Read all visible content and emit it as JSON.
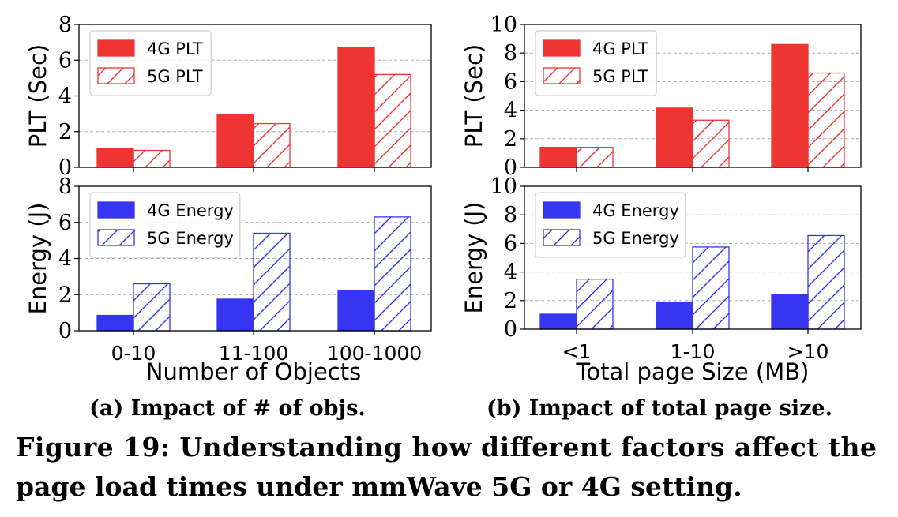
{
  "colors": {
    "g4_plt": "#ef3434",
    "g5_plt": "#ef3434",
    "g4_energy": "#3535f2",
    "g5_energy": "#3535f2"
  },
  "figure_caption": {
    "line1": "Figure 19: Understanding how different factors affect the",
    "line2": "page load times under mmWave 5G or 4G setting."
  },
  "chart_data": [
    {
      "type": "bar",
      "panel": "a-top",
      "categories": [
        "0-10",
        "11-100",
        "100-1000"
      ],
      "ylabel": "PLT (Sec)",
      "ylim": [
        0,
        8
      ],
      "yticks": [
        0,
        2,
        4,
        6,
        8
      ],
      "grid": "horizontal dashed",
      "legend": "top-left",
      "series": [
        {
          "name": "4G PLT",
          "values": [
            1.05,
            2.95,
            6.7
          ],
          "style": "solid"
        },
        {
          "name": "5G PLT",
          "values": [
            0.95,
            2.45,
            5.2
          ],
          "style": "hatched"
        }
      ]
    },
    {
      "type": "bar",
      "panel": "a-bottom",
      "categories": [
        "0-10",
        "11-100",
        "100-1000"
      ],
      "xlabel": "Number of Objects",
      "ylabel": "Energy (J)",
      "ylim": [
        0,
        8
      ],
      "yticks": [
        0,
        2,
        4,
        6,
        8
      ],
      "grid": "horizontal dashed",
      "legend": "top-left",
      "series": [
        {
          "name": "4G Energy",
          "values": [
            0.85,
            1.75,
            2.2
          ],
          "style": "solid"
        },
        {
          "name": "5G Energy",
          "values": [
            2.6,
            5.4,
            6.3
          ],
          "style": "hatched"
        }
      ],
      "caption": "(a) Impact of # of objs."
    },
    {
      "type": "bar",
      "panel": "b-top",
      "categories": [
        "<1",
        "1-10",
        ">10"
      ],
      "ylabel": "PLT (Sec)",
      "ylim": [
        0,
        10
      ],
      "yticks": [
        0,
        2,
        4,
        6,
        8,
        10
      ],
      "grid": "horizontal dashed",
      "legend": "top-left",
      "series": [
        {
          "name": "4G PLT",
          "values": [
            1.4,
            4.15,
            8.6
          ],
          "style": "solid"
        },
        {
          "name": "5G PLT",
          "values": [
            1.4,
            3.3,
            6.6
          ],
          "style": "hatched"
        }
      ]
    },
    {
      "type": "bar",
      "panel": "b-bottom",
      "categories": [
        "<1",
        "1-10",
        ">10"
      ],
      "xlabel": "Total page Size (MB)",
      "ylabel": "Energy (J)",
      "ylim": [
        0,
        10
      ],
      "yticks": [
        0,
        2,
        4,
        6,
        8,
        10
      ],
      "grid": "horizontal dashed",
      "legend": "top-left",
      "series": [
        {
          "name": "4G Energy",
          "values": [
            1.05,
            1.9,
            2.4
          ],
          "style": "solid"
        },
        {
          "name": "5G Energy",
          "values": [
            3.5,
            5.75,
            6.55
          ],
          "style": "hatched"
        }
      ],
      "caption": "(b) Impact of total page size."
    }
  ]
}
